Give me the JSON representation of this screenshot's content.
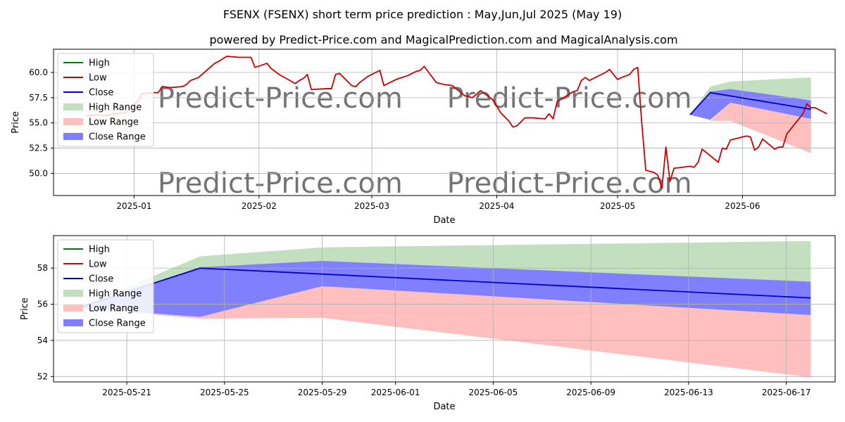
{
  "title": "FSENX (FSENX) short term price prediction : May,Jun,Jul 2025 (May 19)",
  "subtitle": "powered by Predict-Price.com and MagicalPrediction.com and MagicalAnalysis.com",
  "watermark": "Predict-Price.com",
  "colors": {
    "high": "#008000",
    "low": "#cc0000",
    "close": "#0000cc",
    "high_range": "#c2dfc0",
    "low_range": "#ffbfbf",
    "close_range": "#8080ff"
  },
  "chart_data": [
    {
      "type": "line",
      "xlabel": "Date",
      "ylabel": "Price",
      "x_type": "date",
      "xlim": [
        "2024-12-12",
        "2025-06-24"
      ],
      "ylim": [
        47.8,
        62.3
      ],
      "grid": true,
      "legend_position": "top-left",
      "x_ticks": [
        {
          "date": "2025-01-01",
          "label": "2025-01"
        },
        {
          "date": "2025-02-01",
          "label": "2025-02"
        },
        {
          "date": "2025-03-01",
          "label": "2025-03"
        },
        {
          "date": "2025-04-01",
          "label": "2025-04"
        },
        {
          "date": "2025-05-01",
          "label": "2025-05"
        },
        {
          "date": "2025-06-01",
          "label": "2025-06"
        }
      ],
      "y_ticks": [
        50.0,
        52.5,
        55.0,
        57.5,
        60.0
      ],
      "legend": [
        "High",
        "Low",
        "Close",
        "High Range",
        "Low Range",
        "Close Range"
      ],
      "series": [
        {
          "name": "Low",
          "points": [
            [
              "2024-12-20",
              55.7
            ],
            [
              "2024-12-23",
              55.8
            ],
            [
              "2024-12-24",
              55.7
            ],
            [
              "2024-12-26",
              55.8
            ],
            [
              "2024-12-27",
              55.9
            ],
            [
              "2024-12-30",
              56.0
            ],
            [
              "2024-12-31",
              56.4
            ],
            [
              "2025-01-02",
              57.2
            ],
            [
              "2025-01-03",
              57.9
            ],
            [
              "2025-01-06",
              58.0
            ],
            [
              "2025-01-07",
              58.0
            ],
            [
              "2025-01-08",
              58.6
            ],
            [
              "2025-01-10",
              58.5
            ],
            [
              "2025-01-13",
              58.6
            ],
            [
              "2025-01-14",
              58.8
            ],
            [
              "2025-01-15",
              59.2
            ],
            [
              "2025-01-17",
              59.5
            ],
            [
              "2025-01-21",
              60.9
            ],
            [
              "2025-01-22",
              61.1
            ],
            [
              "2025-01-24",
              61.6
            ],
            [
              "2025-01-27",
              61.5
            ],
            [
              "2025-01-28",
              61.5
            ],
            [
              "2025-01-29",
              61.5
            ],
            [
              "2025-01-30",
              61.5
            ],
            [
              "2025-01-31",
              60.5
            ],
            [
              "2025-02-03",
              60.9
            ],
            [
              "2025-02-04",
              60.4
            ],
            [
              "2025-02-05",
              60.1
            ],
            [
              "2025-02-06",
              59.8
            ],
            [
              "2025-02-10",
              58.9
            ],
            [
              "2025-02-11",
              59.2
            ],
            [
              "2025-02-12",
              59.4
            ],
            [
              "2025-02-13",
              59.8
            ],
            [
              "2025-02-14",
              58.3
            ],
            [
              "2025-02-18",
              58.4
            ],
            [
              "2025-02-19",
              58.4
            ],
            [
              "2025-02-20",
              59.8
            ],
            [
              "2025-02-21",
              59.9
            ],
            [
              "2025-02-24",
              58.7
            ],
            [
              "2025-02-25",
              58.6
            ],
            [
              "2025-02-26",
              59.0
            ],
            [
              "2025-02-28",
              59.6
            ],
            [
              "2025-03-03",
              60.2
            ],
            [
              "2025-03-04",
              58.7
            ],
            [
              "2025-03-05",
              58.9
            ],
            [
              "2025-03-06",
              59.1
            ],
            [
              "2025-03-07",
              59.3
            ],
            [
              "2025-03-10",
              59.7
            ],
            [
              "2025-03-11",
              59.9
            ],
            [
              "2025-03-12",
              60.1
            ],
            [
              "2025-03-13",
              60.2
            ],
            [
              "2025-03-14",
              60.6
            ],
            [
              "2025-03-17",
              59.0
            ],
            [
              "2025-03-19",
              58.8
            ],
            [
              "2025-03-21",
              58.7
            ],
            [
              "2025-03-24",
              57.7
            ],
            [
              "2025-03-26",
              57.5
            ],
            [
              "2025-03-28",
              58.2
            ],
            [
              "2025-03-31",
              57.3
            ],
            [
              "2025-04-02",
              56.0
            ],
            [
              "2025-04-04",
              55.2
            ],
            [
              "2025-04-05",
              54.6
            ],
            [
              "2025-04-06",
              54.7
            ],
            [
              "2025-04-08",
              55.5
            ],
            [
              "2025-04-10",
              55.5
            ],
            [
              "2025-04-13",
              55.4
            ],
            [
              "2025-04-14",
              55.9
            ],
            [
              "2025-04-15",
              55.4
            ],
            [
              "2025-04-16",
              57.1
            ],
            [
              "2025-04-18",
              57.6
            ],
            [
              "2025-04-20",
              58.1
            ],
            [
              "2025-04-21",
              58.2
            ],
            [
              "2025-04-22",
              59.2
            ],
            [
              "2025-04-23",
              59.5
            ],
            [
              "2025-04-24",
              59.2
            ],
            [
              "2025-04-28",
              60.0
            ],
            [
              "2025-04-29",
              60.3
            ],
            [
              "2025-05-01",
              59.3
            ],
            [
              "2025-05-02",
              59.5
            ],
            [
              "2025-05-04",
              59.8
            ],
            [
              "2025-05-05",
              60.3
            ],
            [
              "2025-05-06",
              60.5
            ],
            [
              "2025-05-07",
              55.0
            ],
            [
              "2025-05-08",
              50.3
            ],
            [
              "2025-05-10",
              50.1
            ],
            [
              "2025-05-11",
              49.8
            ],
            [
              "2025-05-12",
              48.5
            ],
            [
              "2025-05-13",
              52.6
            ],
            [
              "2025-05-14",
              49.2
            ],
            [
              "2025-05-15",
              50.5
            ],
            [
              "2025-05-17",
              50.6
            ],
            [
              "2025-05-19",
              50.7
            ],
            [
              "2025-05-20",
              50.6
            ],
            [
              "2025-05-21",
              51.1
            ],
            [
              "2025-05-22",
              52.4
            ],
            [
              "2025-05-26",
              51.1
            ],
            [
              "2025-05-27",
              52.5
            ],
            [
              "2025-05-28",
              52.4
            ],
            [
              "2025-05-29",
              53.3
            ],
            [
              "2025-06-01",
              53.6
            ],
            [
              "2025-06-02",
              53.7
            ],
            [
              "2025-06-03",
              53.6
            ],
            [
              "2025-06-04",
              52.3
            ],
            [
              "2025-06-05",
              52.6
            ],
            [
              "2025-06-06",
              53.4
            ],
            [
              "2025-06-09",
              52.4
            ],
            [
              "2025-06-10",
              52.6
            ],
            [
              "2025-06-11",
              52.6
            ],
            [
              "2025-06-12",
              53.9
            ],
            [
              "2025-06-16",
              55.9
            ],
            [
              "2025-06-17",
              56.9
            ],
            [
              "2025-06-18",
              56.5
            ],
            [
              "2025-06-19",
              56.5
            ],
            [
              "2025-06-20",
              56.3
            ],
            [
              "2025-06-22",
              55.9
            ]
          ]
        },
        {
          "name": "Close",
          "points": [
            [
              "2025-05-19",
              55.8
            ],
            [
              "2025-05-24",
              58.0
            ],
            [
              "2025-06-18",
              56.35
            ]
          ]
        }
      ],
      "ranges": [
        {
          "name": "High Range",
          "upper": [
            [
              "2025-05-19",
              55.8
            ],
            [
              "2025-05-24",
              58.6
            ],
            [
              "2025-05-29",
              59.1
            ],
            [
              "2025-06-18",
              59.5
            ]
          ],
          "lower": [
            [
              "2025-05-19",
              55.8
            ],
            [
              "2025-05-24",
              58.0
            ],
            [
              "2025-05-29",
              58.3
            ],
            [
              "2025-06-18",
              57.3
            ]
          ]
        },
        {
          "name": "Low Range",
          "upper": [
            [
              "2025-05-19",
              55.8
            ],
            [
              "2025-05-24",
              55.2
            ],
            [
              "2025-05-29",
              57.0
            ],
            [
              "2025-06-18",
              55.4
            ]
          ],
          "lower": [
            [
              "2025-05-19",
              55.8
            ],
            [
              "2025-05-24",
              55.2
            ],
            [
              "2025-05-29",
              55.2
            ],
            [
              "2025-06-18",
              52.0
            ]
          ]
        },
        {
          "name": "Close Range",
          "upper": [
            [
              "2025-05-19",
              55.8
            ],
            [
              "2025-05-24",
              58.1
            ],
            [
              "2025-05-29",
              58.35
            ],
            [
              "2025-06-18",
              57.25
            ]
          ],
          "lower": [
            [
              "2025-05-19",
              55.8
            ],
            [
              "2025-05-24",
              55.3
            ],
            [
              "2025-05-29",
              57.0
            ],
            [
              "2025-06-18",
              55.4
            ]
          ]
        }
      ]
    },
    {
      "type": "line",
      "xlabel": "Date",
      "ylabel": "Price",
      "x_type": "date",
      "xlim": [
        "2025-05-18",
        "2025-06-19"
      ],
      "ylim": [
        51.7,
        59.8
      ],
      "grid": true,
      "legend_position": "top-left",
      "x_ticks": [
        {
          "date": "2025-05-21",
          "label": "2025-05-21"
        },
        {
          "date": "2025-05-25",
          "label": "2025-05-25"
        },
        {
          "date": "2025-05-29",
          "label": "2025-05-29"
        },
        {
          "date": "2025-06-01",
          "label": "2025-06-01"
        },
        {
          "date": "2025-06-05",
          "label": "2025-06-05"
        },
        {
          "date": "2025-06-09",
          "label": "2025-06-09"
        },
        {
          "date": "2025-06-13",
          "label": "2025-06-13"
        },
        {
          "date": "2025-06-17",
          "label": "2025-06-17"
        }
      ],
      "y_ticks": [
        52,
        54,
        56,
        58
      ],
      "legend": [
        "High",
        "Low",
        "Close",
        "High Range",
        "Low Range",
        "Close Range"
      ],
      "series": [
        {
          "name": "Close",
          "points": [
            [
              "2025-05-19",
              55.8
            ],
            [
              "2025-05-24",
              58.0
            ],
            [
              "2025-06-18",
              56.35
            ]
          ]
        }
      ],
      "ranges": [
        {
          "name": "High Range",
          "upper": [
            [
              "2025-05-19",
              55.8
            ],
            [
              "2025-05-24",
              58.65
            ],
            [
              "2025-05-29",
              59.15
            ],
            [
              "2025-06-18",
              59.5
            ]
          ],
          "lower": [
            [
              "2025-05-19",
              55.8
            ],
            [
              "2025-05-24",
              58.0
            ],
            [
              "2025-05-29",
              58.35
            ],
            [
              "2025-06-18",
              57.25
            ]
          ]
        },
        {
          "name": "Low Range",
          "upper": [
            [
              "2025-05-19",
              55.8
            ],
            [
              "2025-05-24",
              55.3
            ],
            [
              "2025-05-29",
              57.0
            ],
            [
              "2025-06-18",
              55.4
            ]
          ],
          "lower": [
            [
              "2025-05-19",
              55.8
            ],
            [
              "2025-05-24",
              55.2
            ],
            [
              "2025-05-29",
              55.25
            ],
            [
              "2025-06-18",
              51.95
            ]
          ]
        },
        {
          "name": "Close Range",
          "upper": [
            [
              "2025-05-19",
              55.8
            ],
            [
              "2025-05-24",
              58.05
            ],
            [
              "2025-05-29",
              58.4
            ],
            [
              "2025-06-18",
              57.25
            ]
          ],
          "lower": [
            [
              "2025-05-19",
              55.8
            ],
            [
              "2025-05-24",
              55.3
            ],
            [
              "2025-05-29",
              57.0
            ],
            [
              "2025-06-18",
              55.4
            ]
          ]
        }
      ]
    }
  ]
}
